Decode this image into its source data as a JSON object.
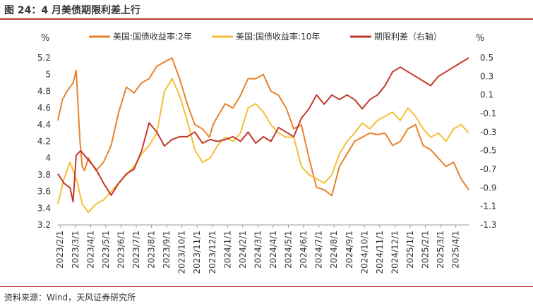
{
  "header": {
    "title": "图 24：4 月美债期限利差上行"
  },
  "footer": {
    "source": "资料来源：Wind，天风证券研究所"
  },
  "chart_data": {
    "type": "line",
    "title": "图 24：4 月美债期限利差上行",
    "left_axis": {
      "label": "%",
      "ylim": [
        3.2,
        5.2
      ],
      "ticks": [
        "3.2",
        "3.4",
        "3.6",
        "3.8",
        "4",
        "4.2",
        "4.4",
        "4.6",
        "4.8",
        "5",
        "5.2"
      ]
    },
    "right_axis": {
      "label": "%",
      "ylim": [
        -1.3,
        0.5
      ],
      "ticks": [
        "-1.3",
        "-1.1",
        "-0.9",
        "-0.7",
        "-0.5",
        "-0.3",
        "-0.1",
        "0.1",
        "0.3",
        "0.5"
      ]
    },
    "x_tick_labels": [
      "2023/2/1",
      "2023/3/1",
      "2023/4/1",
      "2023/5/1",
      "2023/6/1",
      "2023/7/1",
      "2023/8/1",
      "2023/9/1",
      "2023/10/1",
      "2023/11/1",
      "2023/12/1",
      "2024/1/1",
      "2024/2/1",
      "2024/3/1",
      "2024/4/1",
      "2024/5/1",
      "2024/6/1",
      "2024/7/1",
      "2024/8/1",
      "2024/9/1",
      "2024/10/1",
      "2024/11/1",
      "2024/12/1",
      "2025/1/1",
      "2025/2/1",
      "2025/3/1",
      "2025/4/1"
    ],
    "x_range": [
      "2023/2/1",
      "2025/4/30"
    ],
    "legend_position": "top",
    "series": [
      {
        "name": "美国:国债收益率:2年",
        "axis": "left",
        "color": "#e8822a",
        "x": [
          0,
          0.3,
          0.6,
          1,
          1.2,
          1.45,
          1.6,
          1.75,
          2,
          2.5,
          3,
          3.5,
          4,
          4.5,
          5,
          5.5,
          6,
          6.5,
          7,
          7.5,
          8,
          8.5,
          9,
          9.5,
          9.95,
          10.2,
          10.5,
          11,
          11.5,
          12,
          12.5,
          13,
          13.5,
          14,
          14.5,
          15,
          15.5,
          16,
          16.5,
          17,
          17.5,
          18,
          18.5,
          19,
          19.5,
          20,
          20.5,
          21,
          21.5,
          22,
          22.5,
          23,
          23.5,
          24,
          24.5,
          25,
          25.5,
          26,
          26.5,
          27
        ],
        "values": [
          4.45,
          4.7,
          4.8,
          4.9,
          5.05,
          4.2,
          3.9,
          3.85,
          4.0,
          3.85,
          3.95,
          4.15,
          4.55,
          4.85,
          4.78,
          4.9,
          4.95,
          5.1,
          5.15,
          5.2,
          4.95,
          4.65,
          4.4,
          4.35,
          4.25,
          4.4,
          4.5,
          4.65,
          4.6,
          4.75,
          4.95,
          4.95,
          5.0,
          4.8,
          4.75,
          4.6,
          4.35,
          4.4,
          4.0,
          3.65,
          3.62,
          3.55,
          3.9,
          4.05,
          4.2,
          4.25,
          4.3,
          4.28,
          4.3,
          4.15,
          4.2,
          4.35,
          4.4,
          4.15,
          4.1,
          4.0,
          3.9,
          3.95,
          3.75,
          3.62
        ]
      },
      {
        "name": "美国:国债收益率:10年",
        "axis": "left",
        "color": "#f5bf34",
        "x": [
          0,
          0.4,
          0.8,
          1,
          1.3,
          1.6,
          2,
          2.5,
          3,
          3.5,
          4,
          4.5,
          5,
          5.5,
          6,
          6.5,
          7,
          7.5,
          8,
          8.5,
          9,
          9.5,
          10,
          10.5,
          11,
          11.5,
          12,
          12.5,
          13,
          13.5,
          14,
          14.5,
          15,
          15.5,
          16,
          16.5,
          17,
          17.5,
          18,
          18.5,
          19,
          19.5,
          20,
          20.5,
          21,
          21.5,
          22,
          22.5,
          23,
          23.5,
          24,
          24.5,
          25,
          25.5,
          26,
          26.5,
          27
        ],
        "values": [
          3.45,
          3.75,
          3.95,
          3.85,
          3.7,
          3.45,
          3.35,
          3.45,
          3.5,
          3.6,
          3.7,
          3.8,
          3.9,
          4.05,
          4.15,
          4.3,
          4.8,
          4.95,
          4.75,
          4.45,
          4.1,
          3.95,
          4.0,
          4.15,
          4.25,
          4.2,
          4.3,
          4.6,
          4.65,
          4.55,
          4.4,
          4.3,
          4.25,
          4.25,
          3.9,
          3.8,
          3.75,
          3.7,
          3.8,
          4.05,
          4.2,
          4.3,
          4.42,
          4.35,
          4.45,
          4.5,
          4.55,
          4.45,
          4.6,
          4.5,
          4.35,
          4.25,
          4.3,
          4.2,
          4.35,
          4.4,
          4.3
        ]
      },
      {
        "name": "期限利差（右轴）",
        "axis": "right",
        "color": "#c0392b",
        "x": [
          0,
          0.4,
          0.8,
          1,
          1.2,
          1.5,
          2,
          2.5,
          3,
          3.5,
          4,
          4.5,
          5,
          5.5,
          6,
          6.5,
          7,
          7.5,
          8,
          8.5,
          9,
          9.5,
          10,
          10.5,
          11,
          11.5,
          12,
          12.5,
          13,
          13.5,
          14,
          14.5,
          15,
          15.5,
          16,
          16.5,
          17,
          17.5,
          18,
          18.5,
          19,
          19.5,
          20,
          20.5,
          21,
          21.5,
          22,
          22.5,
          23,
          23.5,
          24,
          24.5,
          25,
          25.5,
          26,
          26.5,
          27
        ],
        "values": [
          -0.75,
          -0.85,
          -0.9,
          -1.05,
          -0.55,
          -0.5,
          -0.6,
          -0.7,
          -0.85,
          -0.98,
          -0.85,
          -0.75,
          -0.7,
          -0.5,
          -0.2,
          -0.3,
          -0.45,
          -0.38,
          -0.35,
          -0.35,
          -0.3,
          -0.42,
          -0.38,
          -0.4,
          -0.38,
          -0.35,
          -0.4,
          -0.3,
          -0.42,
          -0.35,
          -0.4,
          -0.25,
          -0.3,
          -0.35,
          -0.15,
          -0.05,
          0.1,
          0.0,
          0.1,
          0.05,
          0.1,
          0.05,
          -0.05,
          0.05,
          0.1,
          0.2,
          0.35,
          0.4,
          0.35,
          0.3,
          0.25,
          0.2,
          0.3,
          0.35,
          0.4,
          0.45,
          0.5
        ]
      }
    ]
  }
}
